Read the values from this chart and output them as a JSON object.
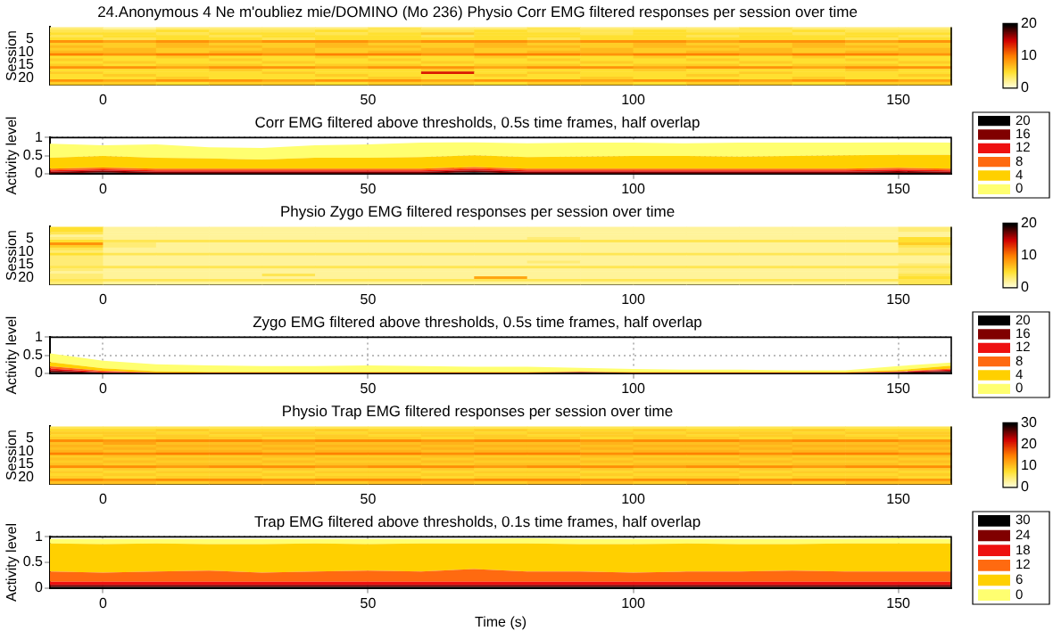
{
  "chart_data": [
    {
      "type": "heatmap",
      "title": "24.Anonymous 4 Ne m'oubliez mie/DOMINO (Mo 236) Physio Corr EMG filtered responses per session over time",
      "ylabel": "Session",
      "x": [
        -5,
        5,
        15,
        25,
        35,
        45,
        55,
        65,
        75,
        85,
        95,
        105,
        115,
        125,
        135,
        145,
        155
      ],
      "xlim": [
        -10,
        160
      ],
      "xticks": [
        0,
        50,
        100,
        150
      ],
      "y_categories": [
        null,
        null,
        null,
        null,
        "5",
        null,
        null,
        null,
        null,
        "10",
        null,
        null,
        null,
        null,
        "15",
        null,
        null,
        null,
        null,
        "20",
        null,
        null
      ],
      "clim": [
        0,
        20
      ],
      "cticks": [
        0,
        10,
        20
      ],
      "cells": [
        [
          3,
          2,
          3,
          3,
          3,
          3,
          4,
          3,
          3,
          4,
          3,
          3,
          3,
          4,
          3,
          3,
          3
        ],
        [
          4,
          4,
          5,
          4,
          4,
          5,
          4,
          4,
          5,
          4,
          4,
          5,
          4,
          4,
          5,
          4,
          4
        ],
        [
          5,
          5,
          4,
          5,
          5,
          4,
          5,
          6,
          5,
          5,
          4,
          5,
          5,
          5,
          4,
          5,
          5
        ],
        [
          4,
          5,
          5,
          4,
          5,
          5,
          5,
          4,
          5,
          5,
          5,
          5,
          4,
          5,
          5,
          5,
          4
        ],
        [
          5,
          4,
          5,
          5,
          4,
          5,
          5,
          5,
          5,
          4,
          5,
          5,
          5,
          5,
          5,
          4,
          5
        ],
        [
          9,
          8,
          9,
          8,
          9,
          9,
          8,
          9,
          9,
          8,
          9,
          9,
          8,
          9,
          9,
          8,
          9
        ],
        [
          6,
          6,
          7,
          6,
          6,
          7,
          6,
          6,
          7,
          6,
          6,
          7,
          6,
          6,
          7,
          6,
          6
        ],
        [
          7,
          6,
          7,
          7,
          6,
          7,
          7,
          6,
          7,
          7,
          6,
          7,
          7,
          6,
          7,
          7,
          6
        ],
        [
          6,
          7,
          6,
          6,
          7,
          6,
          6,
          7,
          6,
          6,
          7,
          6,
          6,
          7,
          6,
          6,
          7
        ],
        [
          7,
          7,
          6,
          7,
          7,
          6,
          7,
          7,
          6,
          7,
          7,
          6,
          7,
          7,
          6,
          7,
          7
        ],
        [
          10,
          9,
          10,
          10,
          9,
          10,
          10,
          9,
          10,
          10,
          9,
          10,
          10,
          9,
          10,
          10,
          9
        ],
        [
          5,
          5,
          6,
          5,
          5,
          6,
          5,
          5,
          6,
          5,
          5,
          6,
          5,
          5,
          6,
          5,
          5
        ],
        [
          6,
          5,
          5,
          6,
          5,
          5,
          6,
          5,
          5,
          6,
          5,
          5,
          6,
          5,
          5,
          6,
          5
        ],
        [
          5,
          6,
          5,
          5,
          6,
          5,
          5,
          6,
          5,
          5,
          6,
          5,
          5,
          6,
          5,
          5,
          6
        ],
        [
          6,
          5,
          6,
          6,
          5,
          6,
          6,
          5,
          6,
          6,
          5,
          6,
          6,
          5,
          6,
          6,
          5
        ],
        [
          9,
          9,
          8,
          9,
          9,
          8,
          9,
          9,
          8,
          9,
          9,
          8,
          9,
          9,
          8,
          9,
          9
        ],
        [
          5,
          5,
          5,
          6,
          5,
          5,
          5,
          6,
          5,
          5,
          5,
          6,
          5,
          5,
          5,
          6,
          5
        ],
        [
          6,
          5,
          5,
          5,
          6,
          5,
          5,
          14,
          5,
          6,
          5,
          5,
          5,
          6,
          5,
          5,
          5
        ],
        [
          5,
          6,
          5,
          5,
          5,
          6,
          5,
          5,
          6,
          5,
          5,
          5,
          6,
          5,
          5,
          5,
          6
        ],
        [
          5,
          5,
          6,
          5,
          5,
          5,
          6,
          5,
          5,
          5,
          6,
          5,
          5,
          5,
          6,
          5,
          5
        ],
        [
          9,
          8,
          9,
          9,
          8,
          9,
          9,
          8,
          9,
          9,
          8,
          9,
          9,
          8,
          9,
          9,
          8
        ],
        [
          6,
          6,
          5,
          6,
          6,
          5,
          6,
          6,
          5,
          6,
          6,
          5,
          6,
          6,
          5,
          6,
          6
        ]
      ]
    },
    {
      "type": "area",
      "title": "Corr EMG filtered above thresholds, 0.5s time frames, half overlap",
      "ylabel": "Activity level",
      "stacked": true,
      "x": [
        -10,
        0,
        10,
        20,
        30,
        40,
        50,
        60,
        70,
        80,
        90,
        100,
        110,
        120,
        130,
        140,
        150,
        160
      ],
      "xlim": [
        -10,
        160
      ],
      "xticks": [
        0,
        50,
        100,
        150
      ],
      "ylim": [
        0,
        1
      ],
      "yticks": [
        0,
        0.5,
        1
      ],
      "grid": true,
      "line_style": "dotted",
      "legend": "right",
      "series": [
        {
          "name": "20",
          "color": "#000000",
          "values": [
            0,
            0.03,
            0,
            0,
            0,
            0,
            0,
            0,
            0.04,
            0,
            0,
            0,
            0,
            0,
            0,
            0,
            0.02,
            0
          ]
        },
        {
          "name": "16",
          "color": "#800000",
          "values": [
            0.05,
            0.05,
            0.05,
            0.05,
            0.05,
            0.05,
            0.05,
            0.05,
            0.05,
            0.05,
            0.05,
            0.05,
            0.05,
            0.05,
            0.05,
            0.05,
            0.05,
            0.05
          ]
        },
        {
          "name": "12",
          "color": "#ee1010",
          "values": [
            0.04,
            0.04,
            0.04,
            0.04,
            0.04,
            0.04,
            0.04,
            0.04,
            0.04,
            0.04,
            0.04,
            0.04,
            0.04,
            0.04,
            0.04,
            0.04,
            0.04,
            0.04
          ]
        },
        {
          "name": "8",
          "color": "#ff6a10",
          "values": [
            0.05,
            0.05,
            0.05,
            0.05,
            0.05,
            0.05,
            0.05,
            0.05,
            0.05,
            0.05,
            0.05,
            0.05,
            0.05,
            0.05,
            0.05,
            0.05,
            0.05,
            0.05
          ]
        },
        {
          "name": "4",
          "color": "#ffd000",
          "values": [
            0.3,
            0.32,
            0.3,
            0.28,
            0.25,
            0.3,
            0.3,
            0.32,
            0.33,
            0.32,
            0.33,
            0.35,
            0.35,
            0.33,
            0.35,
            0.37,
            0.36,
            0.38
          ]
        },
        {
          "name": "0",
          "color": "#ffff70",
          "values": [
            0.39,
            0.3,
            0.37,
            0.31,
            0.32,
            0.35,
            0.37,
            0.4,
            0.36,
            0.38,
            0.39,
            0.37,
            0.35,
            0.39,
            0.37,
            0.35,
            0.35,
            0.34
          ]
        }
      ]
    },
    {
      "type": "heatmap",
      "title": "Physio Zygo EMG filtered responses per session over time",
      "ylabel": "Session",
      "x": [
        -5,
        5,
        15,
        25,
        35,
        45,
        55,
        65,
        75,
        85,
        95,
        105,
        115,
        125,
        135,
        145,
        155
      ],
      "xlim": [
        -10,
        160
      ],
      "xticks": [
        0,
        50,
        100,
        150
      ],
      "y_categories": [
        null,
        null,
        null,
        null,
        "5",
        null,
        null,
        null,
        null,
        "10",
        null,
        null,
        null,
        null,
        "15",
        null,
        null,
        null,
        null,
        "20",
        null,
        null
      ],
      "clim": [
        0,
        20
      ],
      "cticks": [
        0,
        10,
        20
      ],
      "cells": [
        [
          5,
          2,
          2,
          2,
          2,
          2,
          2,
          2,
          2,
          2,
          2,
          2,
          2,
          2,
          2,
          2,
          3
        ],
        [
          5,
          2,
          2,
          2,
          2,
          2,
          2,
          2,
          2,
          2,
          2,
          2,
          2,
          2,
          2,
          2,
          3
        ],
        [
          4,
          2,
          2,
          2,
          2,
          2,
          2,
          2,
          2,
          2,
          2,
          2,
          2,
          2,
          2,
          2,
          2
        ],
        [
          2,
          2,
          2,
          2,
          2,
          2,
          2,
          2,
          2,
          2,
          2,
          2,
          2,
          2,
          2,
          2,
          2
        ],
        [
          3,
          2,
          2,
          2,
          2,
          2,
          2,
          2,
          2,
          3,
          2,
          2,
          2,
          2,
          2,
          2,
          5
        ],
        [
          5,
          4,
          4,
          4,
          4,
          4,
          4,
          4,
          4,
          4,
          4,
          4,
          4,
          4,
          4,
          4,
          5
        ],
        [
          9,
          3,
          2,
          2,
          2,
          2,
          2,
          2,
          2,
          2,
          2,
          2,
          2,
          2,
          2,
          2,
          6
        ],
        [
          6,
          3,
          2,
          2,
          2,
          2,
          2,
          2,
          2,
          2,
          2,
          2,
          2,
          2,
          2,
          2,
          4
        ],
        [
          4,
          2,
          2,
          2,
          2,
          2,
          2,
          2,
          2,
          2,
          2,
          2,
          2,
          2,
          2,
          2,
          3
        ],
        [
          3,
          2,
          2,
          2,
          2,
          2,
          2,
          2,
          2,
          2,
          2,
          2,
          2,
          2,
          2,
          2,
          3
        ],
        [
          5,
          4,
          4,
          4,
          4,
          4,
          4,
          4,
          4,
          4,
          4,
          4,
          4,
          4,
          4,
          4,
          4
        ],
        [
          3,
          2,
          2,
          2,
          2,
          2,
          2,
          2,
          2,
          2,
          2,
          2,
          2,
          2,
          2,
          2,
          2
        ],
        [
          3,
          2,
          2,
          2,
          2,
          2,
          2,
          2,
          2,
          2,
          2,
          2,
          2,
          2,
          2,
          2,
          2
        ],
        [
          3,
          2,
          2,
          2,
          2,
          2,
          2,
          2,
          2,
          3,
          2,
          2,
          2,
          2,
          2,
          2,
          2
        ],
        [
          3,
          2,
          2,
          2,
          2,
          2,
          2,
          2,
          2,
          2,
          2,
          2,
          2,
          2,
          2,
          2,
          3
        ],
        [
          4,
          4,
          4,
          4,
          4,
          4,
          4,
          4,
          4,
          4,
          4,
          4,
          4,
          4,
          4,
          4,
          4
        ],
        [
          3,
          2,
          2,
          2,
          2,
          2,
          2,
          2,
          2,
          2,
          2,
          2,
          2,
          2,
          2,
          2,
          3
        ],
        [
          2,
          2,
          2,
          2,
          2,
          2,
          2,
          2,
          2,
          2,
          2,
          2,
          2,
          2,
          2,
          2,
          3
        ],
        [
          3,
          2,
          2,
          2,
          4,
          2,
          2,
          2,
          2,
          2,
          2,
          2,
          2,
          2,
          2,
          2,
          4
        ],
        [
          3,
          2,
          2,
          2,
          2,
          2,
          2,
          2,
          8,
          2,
          2,
          2,
          2,
          2,
          2,
          2,
          5
        ],
        [
          4,
          4,
          4,
          4,
          4,
          4,
          4,
          4,
          4,
          4,
          4,
          4,
          4,
          4,
          4,
          4,
          4
        ],
        [
          3,
          2,
          2,
          2,
          2,
          2,
          2,
          2,
          2,
          2,
          2,
          2,
          2,
          2,
          2,
          2,
          4
        ]
      ]
    },
    {
      "type": "area",
      "title": "Zygo EMG filtered above thresholds, 0.5s time frames, half overlap",
      "ylabel": "Activity level",
      "stacked": true,
      "x": [
        -10,
        0,
        10,
        20,
        30,
        40,
        50,
        60,
        70,
        80,
        90,
        100,
        110,
        120,
        130,
        140,
        150,
        160
      ],
      "xlim": [
        -10,
        160
      ],
      "xticks": [
        0,
        50,
        100,
        150
      ],
      "ylim": [
        0,
        1
      ],
      "yticks": [
        0,
        0.5,
        1
      ],
      "grid": true,
      "line_style": "dotted",
      "legend": "right",
      "series": [
        {
          "name": "20",
          "color": "#000000",
          "values": [
            0.03,
            0,
            0,
            0,
            0,
            0,
            0,
            0,
            0,
            0,
            0.02,
            0,
            0,
            0,
            0,
            0,
            0.01,
            0.03
          ]
        },
        {
          "name": "16",
          "color": "#800000",
          "values": [
            0.05,
            0.02,
            0,
            0,
            0,
            0,
            0,
            0,
            0,
            0,
            0,
            0,
            0,
            0,
            0,
            0,
            0.02,
            0.04
          ]
        },
        {
          "name": "12",
          "color": "#ee1010",
          "values": [
            0.05,
            0.02,
            0.01,
            0.01,
            0.01,
            0.01,
            0.01,
            0.01,
            0.01,
            0.01,
            0.01,
            0.01,
            0.01,
            0.01,
            0.01,
            0.01,
            0.01,
            0.03
          ]
        },
        {
          "name": "8",
          "color": "#ff6a10",
          "values": [
            0.06,
            0.03,
            0.01,
            0.01,
            0.01,
            0.01,
            0.01,
            0.01,
            0.01,
            0.01,
            0.01,
            0.01,
            0.01,
            0.01,
            0.01,
            0.01,
            0.01,
            0.03
          ]
        },
        {
          "name": "4",
          "color": "#ffd000",
          "values": [
            0.12,
            0.07,
            0.04,
            0.02,
            0.02,
            0.02,
            0.02,
            0.02,
            0.02,
            0.02,
            0.02,
            0.02,
            0.02,
            0.02,
            0.02,
            0.02,
            0.04,
            0.08
          ]
        },
        {
          "name": "0",
          "color": "#ffff70",
          "values": [
            0.24,
            0.21,
            0.19,
            0.18,
            0.16,
            0.16,
            0.18,
            0.16,
            0.14,
            0.14,
            0.09,
            0.08,
            0.06,
            0.06,
            0.04,
            0.04,
            0.11,
            0.09
          ]
        }
      ]
    },
    {
      "type": "heatmap",
      "title": "Physio Trap EMG filtered responses per session over time",
      "ylabel": "Session",
      "x": [
        -5,
        5,
        15,
        25,
        35,
        45,
        55,
        65,
        75,
        85,
        95,
        105,
        115,
        125,
        135,
        145,
        155
      ],
      "xlim": [
        -10,
        160
      ],
      "xticks": [
        0,
        50,
        100,
        150
      ],
      "y_categories": [
        null,
        null,
        null,
        null,
        "5",
        null,
        null,
        null,
        null,
        "10",
        null,
        null,
        null,
        null,
        "15",
        null,
        null,
        null,
        null,
        "20",
        null,
        null
      ],
      "clim": [
        0,
        30
      ],
      "cticks": [
        0,
        10,
        20,
        30
      ],
      "cells": [
        [
          6,
          6,
          6,
          6,
          6,
          6,
          6,
          6,
          6,
          6,
          6,
          6,
          6,
          6,
          6,
          6,
          6
        ],
        [
          8,
          8,
          9,
          8,
          8,
          9,
          8,
          8,
          9,
          8,
          8,
          9,
          8,
          8,
          9,
          8,
          8
        ],
        [
          9,
          9,
          8,
          9,
          9,
          8,
          9,
          9,
          8,
          9,
          9,
          8,
          9,
          9,
          8,
          9,
          9
        ],
        [
          8,
          9,
          9,
          8,
          9,
          9,
          8,
          9,
          9,
          8,
          9,
          9,
          8,
          9,
          9,
          8,
          9
        ],
        [
          9,
          8,
          9,
          9,
          8,
          9,
          9,
          8,
          9,
          9,
          8,
          9,
          9,
          8,
          9,
          9,
          8
        ],
        [
          14,
          13,
          14,
          14,
          13,
          14,
          14,
          13,
          14,
          14,
          13,
          14,
          14,
          13,
          14,
          14,
          13
        ],
        [
          10,
          12,
          10,
          10,
          11,
          10,
          10,
          11,
          10,
          10,
          11,
          10,
          10,
          11,
          10,
          10,
          11
        ],
        [
          11,
          10,
          11,
          11,
          10,
          11,
          11,
          10,
          11,
          11,
          10,
          11,
          11,
          10,
          11,
          11,
          10
        ],
        [
          10,
          11,
          10,
          10,
          11,
          10,
          10,
          11,
          10,
          10,
          11,
          10,
          10,
          11,
          10,
          10,
          11
        ],
        [
          11,
          10,
          11,
          11,
          10,
          11,
          11,
          10,
          11,
          11,
          10,
          11,
          11,
          10,
          11,
          11,
          10
        ],
        [
          15,
          14,
          15,
          15,
          14,
          15,
          15,
          14,
          15,
          15,
          14,
          15,
          15,
          14,
          15,
          15,
          14
        ],
        [
          9,
          10,
          9,
          9,
          10,
          9,
          9,
          10,
          9,
          9,
          10,
          9,
          9,
          10,
          9,
          9,
          10
        ],
        [
          10,
          9,
          10,
          10,
          9,
          10,
          10,
          9,
          10,
          10,
          9,
          10,
          10,
          9,
          10,
          10,
          9
        ],
        [
          9,
          10,
          9,
          9,
          10,
          9,
          9,
          10,
          9,
          9,
          10,
          9,
          9,
          10,
          9,
          9,
          10
        ],
        [
          10,
          9,
          10,
          10,
          9,
          10,
          10,
          9,
          10,
          10,
          9,
          10,
          10,
          9,
          10,
          10,
          9
        ],
        [
          14,
          14,
          13,
          14,
          14,
          13,
          14,
          14,
          13,
          14,
          14,
          13,
          14,
          14,
          13,
          14,
          14
        ],
        [
          8,
          9,
          8,
          8,
          9,
          8,
          8,
          9,
          8,
          8,
          9,
          8,
          8,
          9,
          8,
          8,
          9
        ],
        [
          9,
          8,
          9,
          9,
          8,
          9,
          9,
          8,
          9,
          9,
          8,
          9,
          9,
          8,
          9,
          9,
          8
        ],
        [
          8,
          9,
          8,
          8,
          9,
          8,
          8,
          9,
          8,
          8,
          9,
          8,
          8,
          9,
          8,
          8,
          9
        ],
        [
          9,
          8,
          9,
          9,
          8,
          9,
          9,
          8,
          9,
          9,
          8,
          9,
          9,
          8,
          9,
          9,
          8
        ],
        [
          14,
          13,
          14,
          14,
          13,
          14,
          14,
          13,
          14,
          14,
          13,
          14,
          14,
          13,
          14,
          14,
          13
        ],
        [
          10,
          10,
          9,
          10,
          10,
          9,
          10,
          10,
          9,
          10,
          10,
          9,
          10,
          10,
          9,
          10,
          10
        ]
      ]
    },
    {
      "type": "area",
      "title": "Trap EMG filtered above thresholds, 0.1s time frames, half overlap",
      "xlabel": "Time (s)",
      "ylabel": "Activity level",
      "stacked": true,
      "x": [
        -10,
        0,
        10,
        20,
        30,
        40,
        50,
        60,
        70,
        80,
        90,
        100,
        110,
        120,
        130,
        140,
        150,
        160
      ],
      "xlim": [
        -10,
        160
      ],
      "xticks": [
        0,
        50,
        100,
        150
      ],
      "ylim": [
        0,
        1
      ],
      "yticks": [
        0,
        0.5,
        1
      ],
      "grid": true,
      "line_style": "dotted",
      "legend": "right",
      "series": [
        {
          "name": "30",
          "color": "#000000",
          "values": [
            0.02,
            0.02,
            0.02,
            0.02,
            0.02,
            0.02,
            0.02,
            0.02,
            0.02,
            0.02,
            0.02,
            0.02,
            0.02,
            0.02,
            0.02,
            0.02,
            0.02,
            0.02
          ]
        },
        {
          "name": "24",
          "color": "#800000",
          "values": [
            0.04,
            0.04,
            0.04,
            0.04,
            0.04,
            0.04,
            0.04,
            0.04,
            0.04,
            0.04,
            0.04,
            0.04,
            0.04,
            0.04,
            0.04,
            0.04,
            0.04,
            0.04
          ]
        },
        {
          "name": "18",
          "color": "#ee1010",
          "values": [
            0.06,
            0.06,
            0.06,
            0.06,
            0.06,
            0.06,
            0.06,
            0.06,
            0.06,
            0.06,
            0.06,
            0.06,
            0.06,
            0.06,
            0.06,
            0.06,
            0.06,
            0.06
          ]
        },
        {
          "name": "12",
          "color": "#ff6a10",
          "values": [
            0.2,
            0.18,
            0.2,
            0.22,
            0.18,
            0.2,
            0.22,
            0.2,
            0.25,
            0.2,
            0.2,
            0.18,
            0.2,
            0.2,
            0.22,
            0.2,
            0.2,
            0.2
          ]
        },
        {
          "name": "6",
          "color": "#ffd000",
          "values": [
            0.55,
            0.56,
            0.55,
            0.52,
            0.56,
            0.55,
            0.52,
            0.55,
            0.5,
            0.55,
            0.54,
            0.56,
            0.55,
            0.54,
            0.52,
            0.55,
            0.55,
            0.55
          ]
        },
        {
          "name": "0",
          "color": "#ffff70",
          "values": [
            0.09,
            0.1,
            0.09,
            0.1,
            0.1,
            0.09,
            0.1,
            0.09,
            0.09,
            0.1,
            0.1,
            0.1,
            0.09,
            0.1,
            0.1,
            0.09,
            0.1,
            0.09
          ]
        }
      ]
    }
  ]
}
